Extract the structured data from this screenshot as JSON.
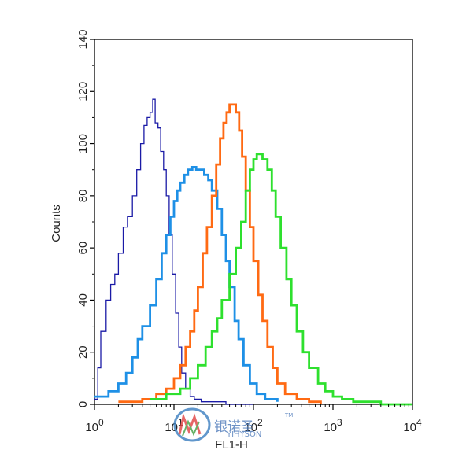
{
  "chart_data": {
    "type": "line",
    "title": "",
    "xlabel": "FL1-H",
    "ylabel": "Counts",
    "x_scale": "log",
    "xlim": [
      1,
      10000
    ],
    "ylim": [
      0,
      140
    ],
    "x_ticks": [
      {
        "value": 1,
        "base": "10",
        "exp": "0"
      },
      {
        "value": 10,
        "base": "10",
        "exp": "1"
      },
      {
        "value": 100,
        "base": "10",
        "exp": "2"
      },
      {
        "value": 1000,
        "base": "10",
        "exp": "3"
      },
      {
        "value": 10000,
        "base": "10",
        "exp": "4"
      }
    ],
    "y_ticks": [
      "0",
      "20",
      "40",
      "60",
      "80",
      "100",
      "120",
      "140"
    ],
    "grid": false,
    "series": [
      {
        "color": "#1a1aa6",
        "x": [
          1.0,
          1.1,
          1.2,
          1.4,
          1.6,
          1.8,
          2.0,
          2.3,
          2.6,
          3.0,
          3.4,
          3.8,
          4.2,
          4.6,
          5.0,
          5.4,
          5.8,
          6.3,
          6.8,
          7.4,
          8.0,
          8.7,
          9.5,
          10.5,
          11.5,
          12.5,
          14.0,
          16.0,
          18.0,
          22.0,
          30.0,
          45.0,
          70.0,
          100.0
        ],
        "y": [
          2,
          14,
          28,
          40,
          46,
          50,
          58,
          68,
          72,
          80,
          90,
          100,
          107,
          110,
          112,
          117,
          108,
          106,
          97,
          90,
          80,
          65,
          50,
          35,
          22,
          12,
          6,
          3,
          2,
          1,
          1,
          0,
          0,
          0
        ]
      },
      {
        "color": "#1e90e6",
        "x": [
          1.0,
          1.5,
          2.0,
          2.5,
          3.0,
          3.5,
          4.0,
          5.0,
          6.0,
          7.0,
          8.0,
          9.0,
          10.0,
          11.0,
          12.0,
          13.5,
          15.0,
          17.0,
          19.0,
          21.0,
          24.0,
          27.0,
          30.0,
          35.0,
          40.0,
          45.0,
          50.0,
          58.0,
          65.0,
          75.0,
          90.0,
          110.0,
          140.0,
          200.0
        ],
        "y": [
          3,
          5,
          8,
          12,
          18,
          25,
          30,
          38,
          48,
          58,
          65,
          72,
          78,
          82,
          85,
          88,
          90,
          91,
          90,
          90,
          88,
          86,
          82,
          75,
          65,
          55,
          45,
          32,
          25,
          15,
          8,
          4,
          2,
          1
        ]
      },
      {
        "color": "#ff6a13",
        "x": [
          2.0,
          4.0,
          6.0,
          8.0,
          10.0,
          12.0,
          14.0,
          16.0,
          18.0,
          20.0,
          23.0,
          26.0,
          30.0,
          34.0,
          38.0,
          42.0,
          46.0,
          50.0,
          55.0,
          60.0,
          66.0,
          72.0,
          80.0,
          90.0,
          100.0,
          115.0,
          130.0,
          150.0,
          175.0,
          200.0,
          250.0,
          350.0,
          500.0,
          700.0
        ],
        "y": [
          1,
          2,
          4,
          6,
          10,
          15,
          22,
          28,
          36,
          45,
          58,
          68,
          80,
          92,
          102,
          108,
          112,
          115,
          115,
          112,
          105,
          95,
          82,
          68,
          55,
          42,
          32,
          22,
          14,
          8,
          4,
          2,
          1,
          0
        ]
      },
      {
        "color": "#2ee02e",
        "x": [
          5.0,
          8.0,
          12.0,
          16.0,
          20.0,
          25.0,
          30.0,
          35.0,
          40.0,
          50.0,
          60.0,
          70.0,
          80.0,
          90.0,
          100.0,
          110.0,
          120.0,
          130.0,
          150.0,
          170.0,
          190.0,
          220.0,
          260.0,
          300.0,
          350.0,
          420.0,
          500.0,
          650.0,
          800.0,
          1000.0,
          1300.0,
          1800.0,
          2500.0,
          4000.0,
          10000.0
        ],
        "y": [
          2,
          4,
          6,
          10,
          15,
          22,
          28,
          33,
          40,
          50,
          60,
          70,
          82,
          90,
          94,
          96,
          96,
          94,
          90,
          82,
          72,
          60,
          48,
          38,
          28,
          20,
          14,
          8,
          5,
          3,
          2,
          1,
          1,
          0,
          0
        ]
      }
    ]
  },
  "watermark": {
    "brand_cn": "银诺圣",
    "brand_en": "YIHYSON",
    "tm": "TM"
  }
}
